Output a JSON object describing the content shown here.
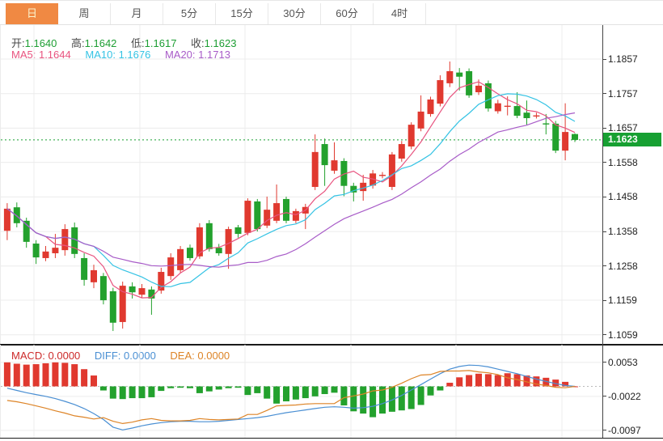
{
  "tabs": {
    "items": [
      {
        "label": "日",
        "active": true
      },
      {
        "label": "周",
        "active": false
      },
      {
        "label": "月",
        "active": false
      },
      {
        "label": "5分",
        "active": false
      },
      {
        "label": "15分",
        "active": false
      },
      {
        "label": "30分",
        "active": false
      },
      {
        "label": "60分",
        "active": false
      },
      {
        "label": "4时",
        "active": false
      }
    ]
  },
  "legend": {
    "open_label": "开:",
    "open_value": "1.1640",
    "high_label": "高:",
    "high_value": "1.1642",
    "low_label": "低:",
    "low_value": "1.1617",
    "close_label": "收:",
    "close_value": "1.1623"
  },
  "ma_legend": {
    "ma5_label": "MA5:",
    "ma5_value": "1.1644",
    "ma10_label": "MA10:",
    "ma10_value": "1.1676",
    "ma20_label": "MA20:",
    "ma20_value": "1.1713"
  },
  "macd_legend": {
    "macd_label": "MACD:",
    "macd_value": "0.0000",
    "diff_label": "DIFF:",
    "diff_value": "0.0000",
    "dea_label": "DEA:",
    "dea_value": "0.0000"
  },
  "price_axis": {
    "ticks": [
      "1.1857",
      "1.1757",
      "1.1657",
      "1.1558",
      "1.1458",
      "1.1358",
      "1.1258",
      "1.1159",
      "1.1059"
    ],
    "current": "1.1623"
  },
  "macd_axis": {
    "ticks": [
      "0.0053",
      "-0.0022",
      "-0.0097"
    ]
  },
  "colors": {
    "up_candle": "#e0392f",
    "down_candle": "#23a12d",
    "ma5": "#e8537f",
    "ma10": "#35c3e4",
    "ma20": "#a85cc8",
    "macd_hist_pos": "#e0392f",
    "macd_hist_neg": "#23a12d",
    "diff_line": "#4a8fd3",
    "dea_line": "#dd8427",
    "active_tab": "#f08943",
    "price_tag": "#17a032",
    "current_price_line": "#17a032",
    "value_text_green": "#1d9e33",
    "grid": "#ececec"
  },
  "chart_data": [
    {
      "type": "candlestick",
      "title": "Daily candlestick chart with MA5/MA10/MA20 (Chinese convention: red = up, green = down)",
      "ylim": [
        1.102,
        1.19
      ],
      "y_ticks": [
        1.1857,
        1.1757,
        1.1657,
        1.1558,
        1.1458,
        1.1358,
        1.1258,
        1.1159,
        1.1059
      ],
      "current_price": 1.1623,
      "ma_periods": [
        5,
        10,
        20
      ],
      "ma_last_values": {
        "MA5": 1.1644,
        "MA10": 1.1676,
        "MA20": 1.1713
      },
      "ohlc": [
        [
          1.136,
          1.144,
          1.1333,
          1.1424
        ],
        [
          1.1428,
          1.1442,
          1.137,
          1.1382
        ],
        [
          1.1389,
          1.1398,
          1.1311,
          1.1328
        ],
        [
          1.1323,
          1.1333,
          1.1264,
          1.1283
        ],
        [
          1.1281,
          1.1316,
          1.1272,
          1.13
        ],
        [
          1.1295,
          1.1351,
          1.1281,
          1.1311
        ],
        [
          1.1304,
          1.1379,
          1.1288,
          1.1365
        ],
        [
          1.137,
          1.1384,
          1.1281,
          1.1293
        ],
        [
          1.1281,
          1.1295,
          1.1201,
          1.1218
        ],
        [
          1.1211,
          1.1262,
          1.1194,
          1.1246
        ],
        [
          1.1229,
          1.1238,
          1.1147,
          1.1159
        ],
        [
          1.1185,
          1.1195,
          1.107,
          1.1094
        ],
        [
          1.1096,
          1.1213,
          1.1077,
          1.1201
        ],
        [
          1.1199,
          1.1211,
          1.1164,
          1.1182
        ],
        [
          1.1175,
          1.1206,
          1.1166,
          1.1194
        ],
        [
          1.119,
          1.1199,
          1.1117,
          1.1164
        ],
        [
          1.1187,
          1.1253,
          1.1178,
          1.1241
        ],
        [
          1.1229,
          1.1295,
          1.1218,
          1.1283
        ],
        [
          1.1246,
          1.1316,
          1.1239,
          1.1307
        ],
        [
          1.1311,
          1.132,
          1.1274,
          1.1281
        ],
        [
          1.1286,
          1.1382,
          1.1279,
          1.137
        ],
        [
          1.1382,
          1.1391,
          1.13,
          1.1307
        ],
        [
          1.1311,
          1.1322,
          1.1288,
          1.1295
        ],
        [
          1.1293,
          1.1372,
          1.125,
          1.1365
        ],
        [
          1.137,
          1.1377,
          1.134,
          1.1351
        ],
        [
          1.1354,
          1.1454,
          1.1347,
          1.1447
        ],
        [
          1.1445,
          1.1452,
          1.1358,
          1.1365
        ],
        [
          1.1375,
          1.1459,
          1.1368,
          1.1421
        ],
        [
          1.1389,
          1.1494,
          1.1382,
          1.144
        ],
        [
          1.1452,
          1.1459,
          1.1382,
          1.1389
        ],
        [
          1.1389,
          1.1424,
          1.1382,
          1.1417
        ],
        [
          1.141,
          1.1438,
          1.1365,
          1.1429
        ],
        [
          1.1487,
          1.1639,
          1.1478,
          1.1588
        ],
        [
          1.1611,
          1.1627,
          1.149,
          1.155
        ],
        [
          1.1534,
          1.1616,
          1.1525,
          1.1564
        ],
        [
          1.1562,
          1.157,
          1.146,
          1.149
        ],
        [
          1.149,
          1.1499,
          1.1445,
          1.1471
        ],
        [
          1.1475,
          1.1522,
          1.1447,
          1.1499
        ],
        [
          1.1491,
          1.1536,
          1.1482,
          1.1526
        ],
        [
          1.152,
          1.153,
          1.1512,
          1.1522
        ],
        [
          1.1487,
          1.1588,
          1.1478,
          1.1581
        ],
        [
          1.1569,
          1.162,
          1.156,
          1.1611
        ],
        [
          1.1604,
          1.1674,
          1.1596,
          1.1667
        ],
        [
          1.1656,
          1.1752,
          1.1648,
          1.1705
        ],
        [
          1.1698,
          1.1748,
          1.169,
          1.174
        ],
        [
          1.1728,
          1.181,
          1.172,
          1.1796
        ],
        [
          1.1787,
          1.185,
          1.1776,
          1.1822
        ],
        [
          1.1818,
          1.1831,
          1.1766,
          1.1806
        ],
        [
          1.1822,
          1.183,
          1.1745,
          1.1752
        ],
        [
          1.1761,
          1.1798,
          1.1753,
          1.178
        ],
        [
          1.1787,
          1.1795,
          1.1705,
          1.1714
        ],
        [
          1.1706,
          1.1739,
          1.1699,
          1.1729
        ],
        [
          1.172,
          1.1749,
          1.1694,
          1.1722
        ],
        [
          1.1721,
          1.1761,
          1.1686,
          1.1693
        ],
        [
          1.1702,
          1.1737,
          1.1667,
          1.1686
        ],
        [
          1.1692,
          1.1702,
          1.1685,
          1.1694
        ],
        [
          1.1671,
          1.1698,
          1.1639,
          1.1668
        ],
        [
          1.167,
          1.1678,
          1.1585,
          1.1592
        ],
        [
          1.1592,
          1.1729,
          1.1564,
          1.1646
        ],
        [
          1.164,
          1.1642,
          1.1617,
          1.1623
        ]
      ]
    },
    {
      "type": "bar",
      "title": "MACD (12,26,9) histogram with DIFF and DEA lines",
      "ylim": [
        -0.011,
        0.0065
      ],
      "y_ticks": [
        0.0053,
        -0.0022,
        -0.0097
      ],
      "last_values": {
        "MACD": 0.0,
        "DIFF": 0.0,
        "DEA": 0.0
      },
      "histogram": [
        0.0053,
        0.005,
        0.0048,
        0.0049,
        0.0051,
        0.0053,
        0.0052,
        0.0049,
        0.0038,
        0.0024,
        -0.0009,
        -0.0027,
        -0.0028,
        -0.0026,
        -0.0026,
        -0.0024,
        -0.001,
        -0.0004,
        -0.0003,
        -0.0004,
        -0.0015,
        -0.0011,
        -0.0007,
        -0.0004,
        -0.0003,
        -0.0019,
        -0.0015,
        -0.0027,
        -0.0038,
        -0.0033,
        -0.0029,
        -0.0026,
        -0.0022,
        -0.0017,
        -0.0014,
        -0.0042,
        -0.0055,
        -0.006,
        -0.0068,
        -0.006,
        -0.0056,
        -0.0053,
        -0.005,
        -0.0041,
        -0.002,
        -0.0009,
        0.0008,
        0.002,
        0.0025,
        0.0028,
        0.0027,
        0.0025,
        0.0029,
        0.0027,
        0.0024,
        0.0022,
        0.0019,
        0.0015,
        0.001,
        0.0
      ],
      "diff": [
        -0.0004,
        -0.0009,
        -0.0014,
        -0.0018,
        -0.0022,
        -0.0027,
        -0.0033,
        -0.004,
        -0.0049,
        -0.006,
        -0.0073,
        -0.009,
        -0.0096,
        -0.0092,
        -0.0087,
        -0.0083,
        -0.008,
        -0.0078,
        -0.0077,
        -0.0077,
        -0.0078,
        -0.0078,
        -0.0077,
        -0.0075,
        -0.0073,
        -0.0071,
        -0.0069,
        -0.0066,
        -0.0062,
        -0.0058,
        -0.0055,
        -0.0052,
        -0.0049,
        -0.0046,
        -0.0045,
        -0.0046,
        -0.0048,
        -0.0047,
        -0.0044,
        -0.0038,
        -0.003,
        -0.002,
        -0.0008,
        0.0004,
        0.0016,
        0.0028,
        0.0038,
        0.0044,
        0.0047,
        0.0046,
        0.0043,
        0.0038,
        0.0033,
        0.0028,
        0.0022,
        0.0016,
        0.0011,
        0.0006,
        0.0002,
        0.0
      ],
      "dea": [
        -0.0031,
        -0.0034,
        -0.0038,
        -0.0043,
        -0.0048,
        -0.0054,
        -0.0059,
        -0.0065,
        -0.0068,
        -0.0072,
        -0.0069,
        -0.0077,
        -0.0082,
        -0.0079,
        -0.0074,
        -0.0071,
        -0.0075,
        -0.0076,
        -0.0076,
        -0.0075,
        -0.0071,
        -0.0073,
        -0.0074,
        -0.0073,
        -0.0072,
        -0.0062,
        -0.0062,
        -0.0053,
        -0.0043,
        -0.0042,
        -0.0041,
        -0.0039,
        -0.0038,
        -0.0038,
        -0.0038,
        -0.0025,
        -0.0021,
        -0.0017,
        -0.001,
        -0.0008,
        -0.0002,
        0.0007,
        0.0017,
        0.0025,
        0.0026,
        0.0033,
        0.0034,
        0.0034,
        0.0035,
        0.0032,
        0.003,
        0.0026,
        0.0019,
        0.0015,
        0.001,
        0.0005,
        0.0002,
        -0.0002,
        -0.0003,
        0.0
      ]
    }
  ]
}
